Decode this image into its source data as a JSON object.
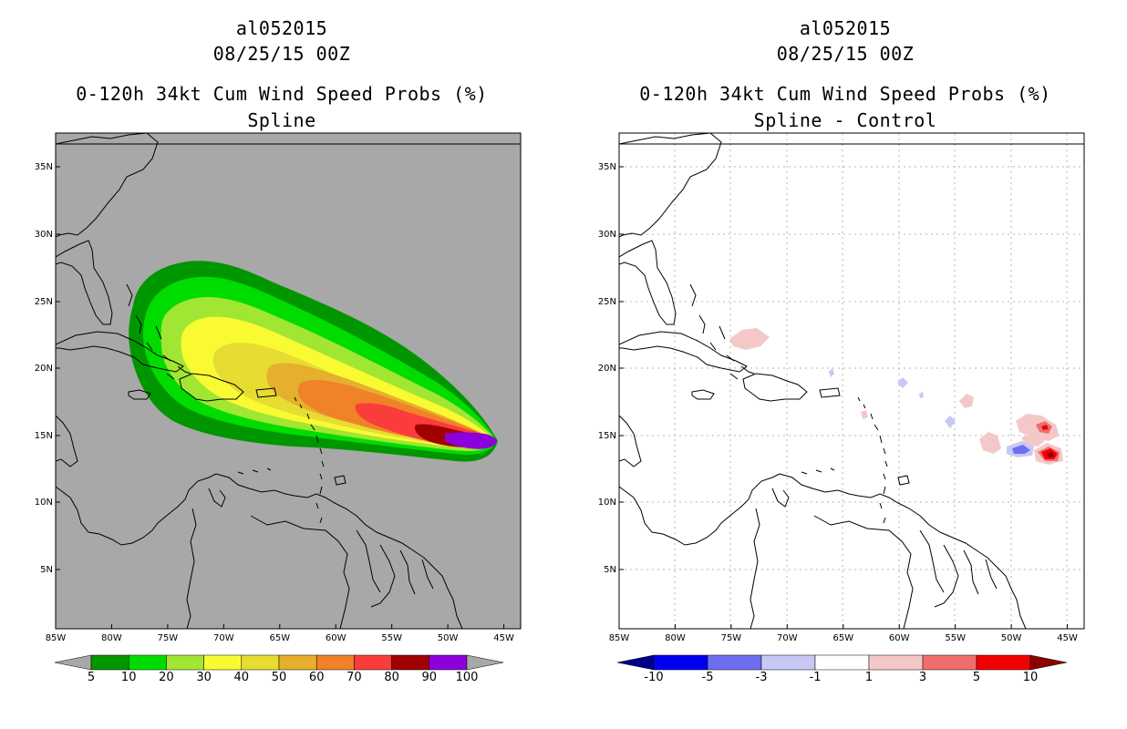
{
  "panels": [
    {
      "storm_id": "al052015",
      "datetime": "08/25/15 00Z",
      "title": "0-120h 34kt Cum Wind Speed Probs (%)",
      "subtitle": "Spline",
      "lat_labels": [
        "35N",
        "30N",
        "25N",
        "20N",
        "15N",
        "10N",
        "5N"
      ],
      "lon_labels": [
        "85W",
        "80W",
        "75W",
        "70W",
        "65W",
        "60W",
        "55W",
        "50W",
        "45W"
      ],
      "colorbar": {
        "labels": [
          "5",
          "10",
          "20",
          "30",
          "40",
          "50",
          "60",
          "70",
          "80",
          "90",
          "100"
        ],
        "colors": [
          "#a8a8a8",
          "#009600",
          "#00dc00",
          "#a0e632",
          "#fafa32",
          "#e6dc32",
          "#e6af2d",
          "#f08228",
          "#fa3c3c",
          "#a00000",
          "#8c00dc",
          "#a8a8a8"
        ]
      }
    },
    {
      "storm_id": "al052015",
      "datetime": "08/25/15 00Z",
      "title": "0-120h 34kt Cum Wind Speed Probs (%)",
      "subtitle": "Spline - Control",
      "lat_labels": [
        "35N",
        "30N",
        "25N",
        "20N",
        "15N",
        "10N",
        "5N"
      ],
      "lon_labels": [
        "85W",
        "80W",
        "75W",
        "70W",
        "65W",
        "60W",
        "55W",
        "50W",
        "45W"
      ],
      "colorbar": {
        "labels": [
          "-10",
          "-5",
          "-3",
          "-1",
          "1",
          "3",
          "5",
          "10"
        ],
        "colors": [
          "#00008c",
          "#0000f0",
          "#6e6ef0",
          "#c8c8f5",
          "#ffffff",
          "#f5c8c8",
          "#f06e6e",
          "#f00000",
          "#8c0000"
        ]
      }
    }
  ]
}
